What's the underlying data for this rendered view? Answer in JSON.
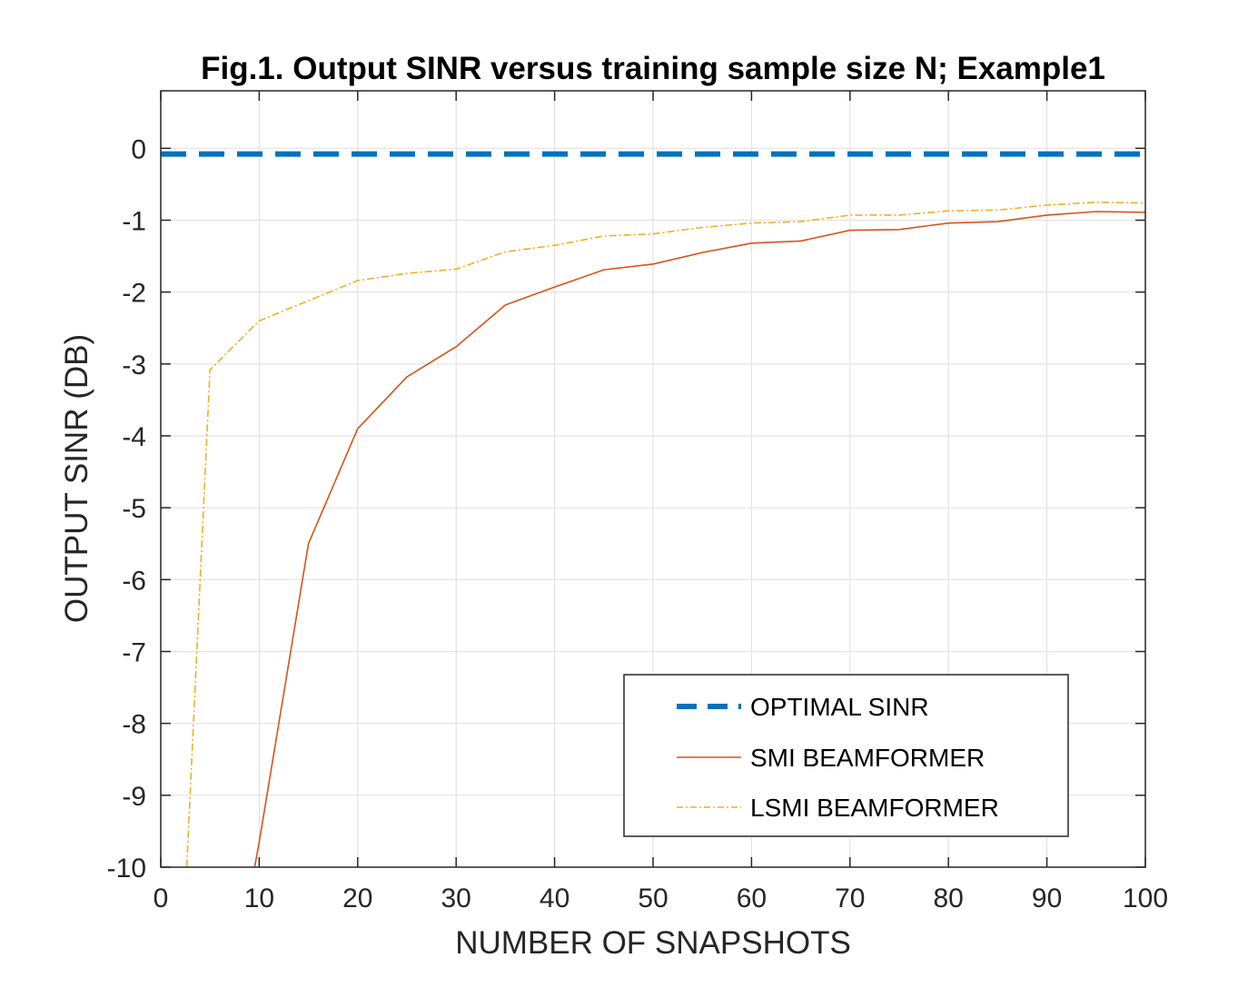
{
  "chart_data": {
    "type": "line",
    "title": "Fig.1. Output SINR versus training sample size N; Example1",
    "xlabel": "NUMBER OF SNAPSHOTS",
    "ylabel": "OUTPUT SINR (DB)",
    "xlim": [
      0,
      100
    ],
    "ylim": [
      -10,
      0.8
    ],
    "xticks": [
      0,
      10,
      20,
      30,
      40,
      50,
      60,
      70,
      80,
      90,
      100
    ],
    "yticks": [
      -10,
      -9,
      -8,
      -7,
      -6,
      -5,
      -4,
      -3,
      -2,
      -1,
      0
    ],
    "grid": true,
    "legend_position": "bottom-right",
    "series": [
      {
        "name": "OPTIMAL SINR",
        "color": "#0072BD",
        "style": "dashed-thick",
        "x": [
          0,
          100
        ],
        "y": [
          -0.08,
          -0.08
        ]
      },
      {
        "name": "SMI BEAMFORMER",
        "color": "#D95319",
        "style": "solid",
        "x": [
          9,
          10,
          15,
          20,
          25,
          30,
          35,
          40,
          45,
          50,
          55,
          60,
          65,
          70,
          75,
          80,
          85,
          90,
          95,
          100
        ],
        "y": [
          -10.4,
          -9.65,
          -5.5,
          -3.9,
          -3.18,
          -2.76,
          -2.18,
          -1.93,
          -1.69,
          -1.61,
          -1.45,
          -1.32,
          -1.29,
          -1.14,
          -1.13,
          -1.04,
          -1.02,
          -0.93,
          -0.88,
          -0.89
        ]
      },
      {
        "name": "LSMI BEAMFORMER",
        "color": "#EDB120",
        "style": "dash-dot",
        "x": [
          2.5,
          5,
          10,
          15,
          20,
          25,
          30,
          35,
          40,
          45,
          50,
          55,
          60,
          65,
          70,
          75,
          80,
          85,
          90,
          95,
          100
        ],
        "y": [
          -10.4,
          -3.08,
          -2.4,
          -2.12,
          -1.84,
          -1.74,
          -1.68,
          -1.44,
          -1.35,
          -1.22,
          -1.19,
          -1.1,
          -1.04,
          -1.02,
          -0.93,
          -0.93,
          -0.87,
          -0.86,
          -0.79,
          -0.75,
          -0.76
        ]
      }
    ]
  }
}
